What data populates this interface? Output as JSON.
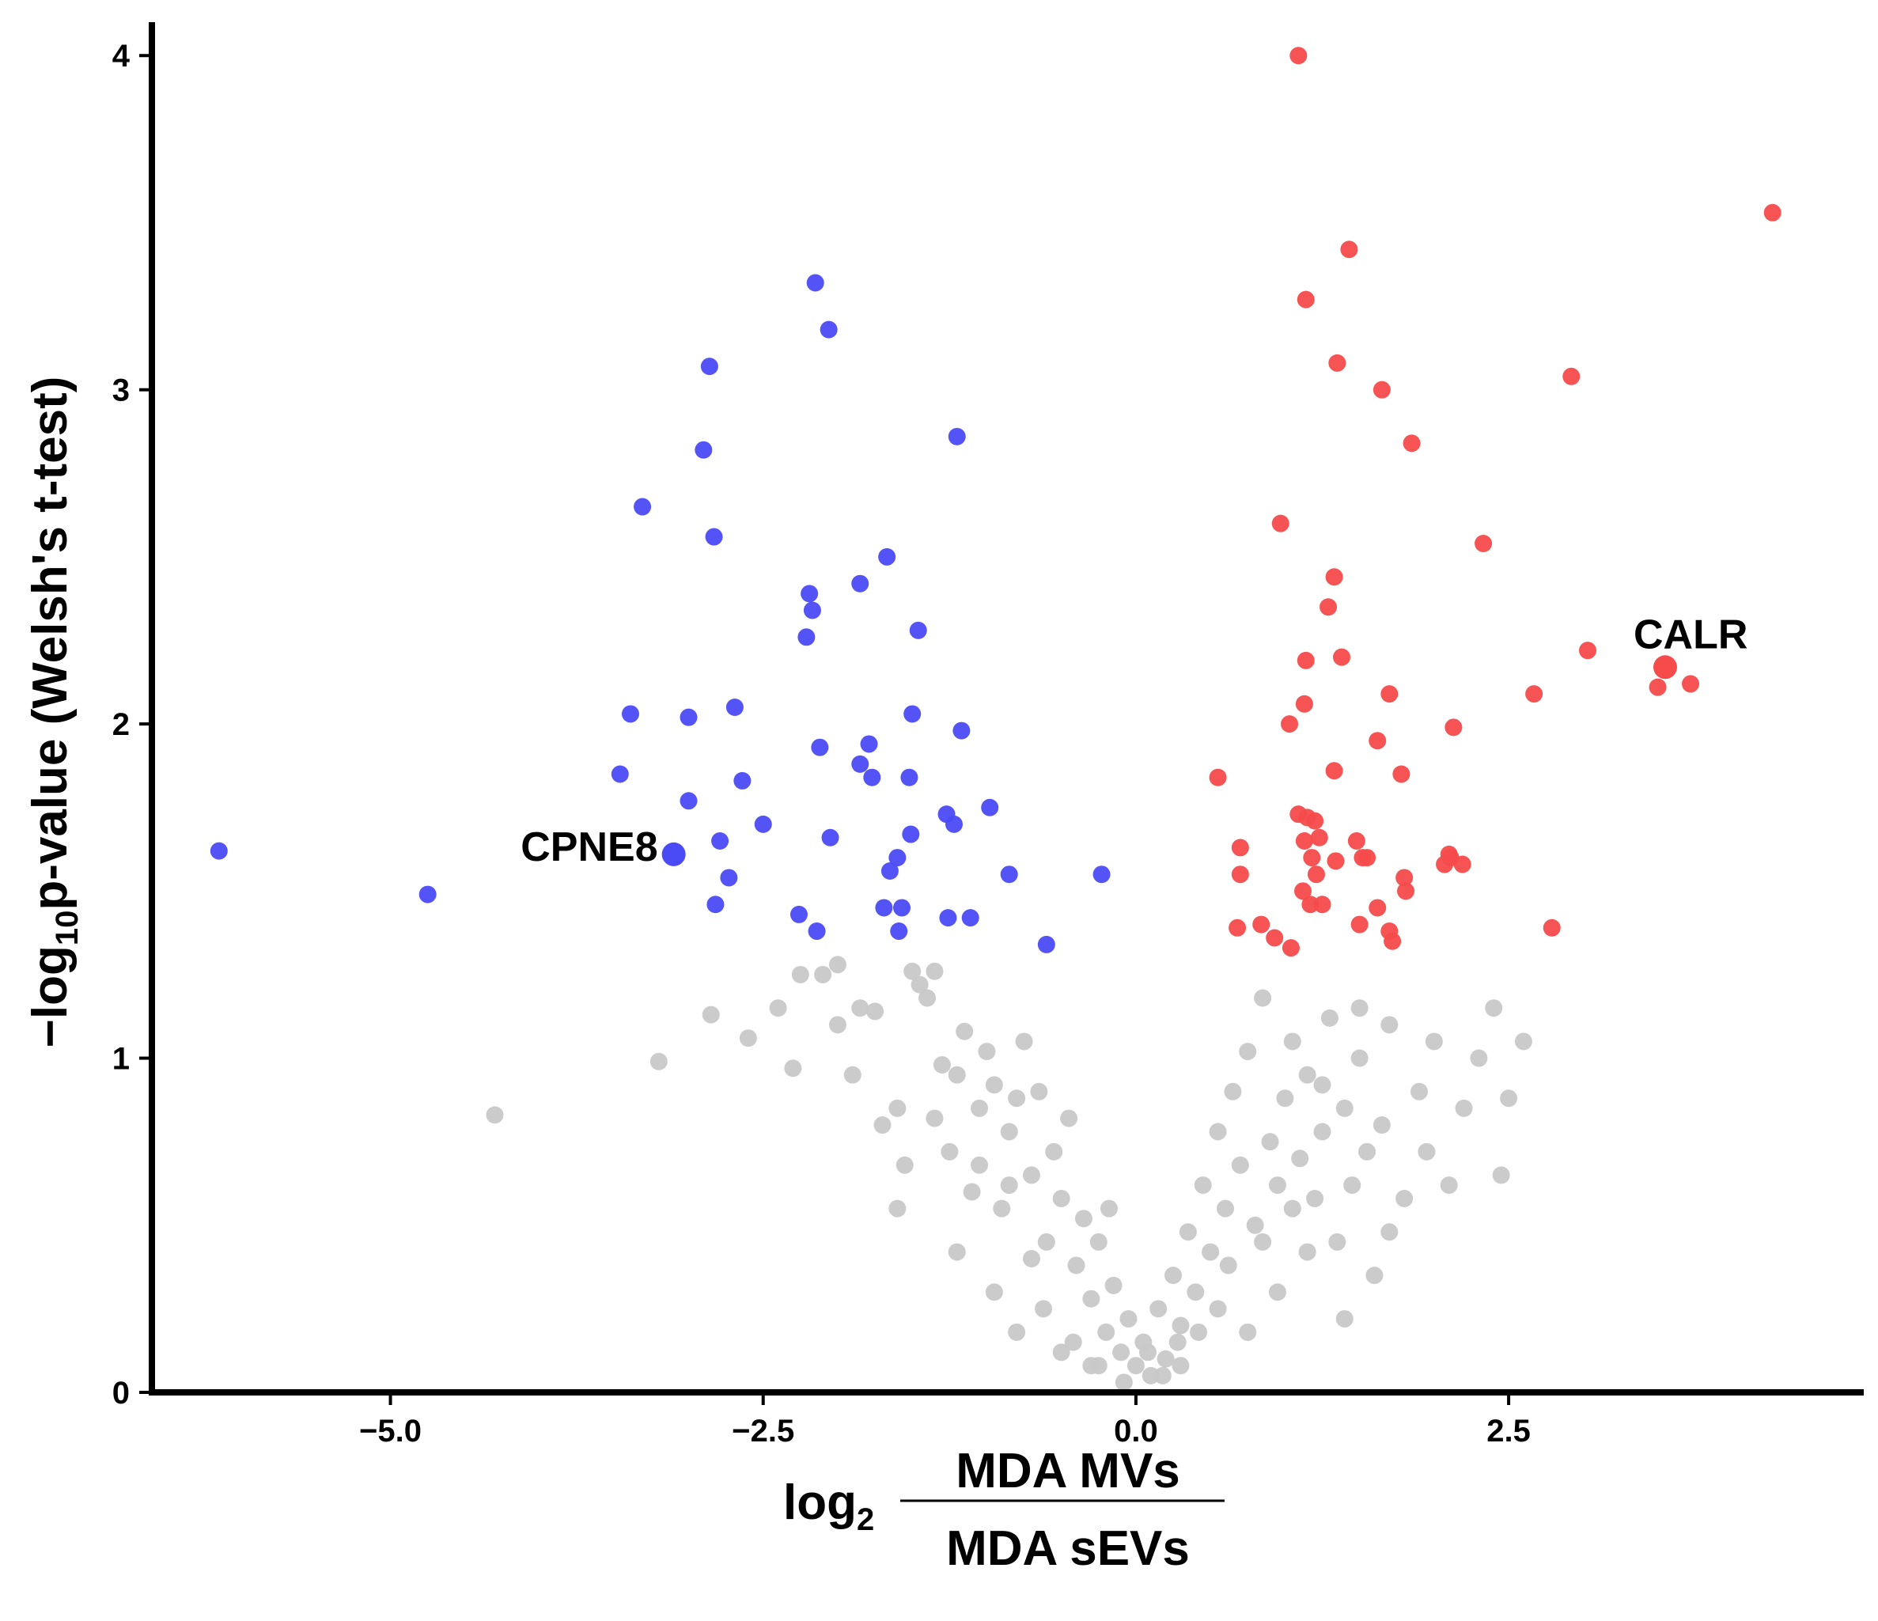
{
  "chart_data": {
    "type": "scatter",
    "title": "",
    "xlabel": {
      "prefix": "log",
      "base": "2",
      "numerator": "MDA MVs",
      "denominator": "MDA sEVs"
    },
    "ylabel": {
      "prefix": "−log",
      "base": "10",
      "suffix": "p-value (Welsh's t-test)"
    },
    "xlim": [
      -6.6,
      4.85
    ],
    "ylim": [
      0,
      4.1
    ],
    "xticks": [
      -5.0,
      -2.5,
      0.0,
      2.5
    ],
    "xtick_labels": [
      "−5.0",
      "−2.5",
      "0.0",
      "2.5"
    ],
    "yticks": [
      0,
      1,
      2,
      3,
      4
    ],
    "ytick_labels": [
      "0",
      "1",
      "2",
      "3",
      "4"
    ],
    "grid": false,
    "colors": {
      "down": "#4b4bf6",
      "up": "#f64b4b",
      "ns": "#c8c8c8"
    },
    "labels": [
      {
        "text": "CPNE8",
        "x": -3.1,
        "y": 1.61,
        "anchor": "end"
      },
      {
        "text": "CALR",
        "x": 3.55,
        "y": 2.17,
        "anchor": "start"
      }
    ],
    "series": [
      {
        "name": "down",
        "color": "#4b4bf6",
        "points": [
          [
            -6.15,
            1.62
          ],
          [
            -4.75,
            1.49
          ],
          [
            -3.31,
            2.65
          ],
          [
            -3.39,
            2.03
          ],
          [
            -3.46,
            1.85
          ],
          [
            -3.1,
            1.61
          ],
          [
            -3.0,
            2.02
          ],
          [
            -3.0,
            1.77
          ],
          [
            -2.9,
            2.82
          ],
          [
            -2.86,
            3.07
          ],
          [
            -2.83,
            2.56
          ],
          [
            -2.82,
            1.46
          ],
          [
            -2.79,
            1.65
          ],
          [
            -2.73,
            1.54
          ],
          [
            -2.69,
            2.05
          ],
          [
            -2.64,
            1.83
          ],
          [
            -2.5,
            1.7
          ],
          [
            -2.26,
            1.43
          ],
          [
            -2.21,
            2.26
          ],
          [
            -2.19,
            2.39
          ],
          [
            -2.17,
            2.34
          ],
          [
            -2.15,
            3.32
          ],
          [
            -2.14,
            1.38
          ],
          [
            -2.12,
            1.93
          ],
          [
            -2.06,
            3.18
          ],
          [
            -2.05,
            1.66
          ],
          [
            -1.85,
            2.42
          ],
          [
            -1.85,
            1.88
          ],
          [
            -1.79,
            1.94
          ],
          [
            -1.77,
            1.84
          ],
          [
            -1.69,
            1.45
          ],
          [
            -1.67,
            2.5
          ],
          [
            -1.65,
            1.56
          ],
          [
            -1.6,
            1.6
          ],
          [
            -1.59,
            1.38
          ],
          [
            -1.57,
            1.45
          ],
          [
            -1.52,
            1.84
          ],
          [
            -1.51,
            1.67
          ],
          [
            -1.5,
            2.03
          ],
          [
            -1.46,
            2.28
          ],
          [
            -1.27,
            1.73
          ],
          [
            -1.26,
            1.42
          ],
          [
            -1.22,
            1.7
          ],
          [
            -1.2,
            2.86
          ],
          [
            -1.17,
            1.98
          ],
          [
            -1.11,
            1.42
          ],
          [
            -0.98,
            1.75
          ],
          [
            -0.85,
            1.55
          ],
          [
            -0.6,
            1.34
          ],
          [
            -0.23,
            1.55
          ]
        ]
      },
      {
        "name": "up",
        "color": "#f64b4b",
        "points": [
          [
            0.55,
            1.84
          ],
          [
            0.68,
            1.39
          ],
          [
            0.7,
            1.63
          ],
          [
            0.7,
            1.55
          ],
          [
            0.84,
            1.4
          ],
          [
            0.93,
            1.36
          ],
          [
            0.97,
            2.6
          ],
          [
            1.03,
            2.0
          ],
          [
            1.09,
            4.0
          ],
          [
            1.13,
            2.06
          ],
          [
            1.04,
            1.33
          ],
          [
            1.09,
            1.73
          ],
          [
            1.12,
            1.5
          ],
          [
            1.13,
            1.65
          ],
          [
            1.14,
            2.19
          ],
          [
            1.14,
            3.27
          ],
          [
            1.15,
            1.72
          ],
          [
            1.17,
            1.46
          ],
          [
            1.18,
            1.6
          ],
          [
            1.2,
            1.71
          ],
          [
            1.21,
            1.55
          ],
          [
            1.23,
            1.66
          ],
          [
            1.25,
            1.46
          ],
          [
            1.29,
            2.35
          ],
          [
            1.33,
            2.44
          ],
          [
            1.33,
            1.86
          ],
          [
            1.34,
            1.59
          ],
          [
            1.35,
            3.08
          ],
          [
            1.38,
            2.2
          ],
          [
            1.43,
            3.42
          ],
          [
            1.48,
            1.65
          ],
          [
            1.5,
            1.4
          ],
          [
            1.52,
            1.6
          ],
          [
            1.55,
            1.6
          ],
          [
            1.62,
            1.95
          ],
          [
            1.62,
            1.45
          ],
          [
            1.65,
            3.0
          ],
          [
            1.7,
            1.38
          ],
          [
            1.7,
            2.09
          ],
          [
            1.72,
            1.35
          ],
          [
            1.78,
            1.85
          ],
          [
            1.8,
            1.54
          ],
          [
            1.81,
            1.5
          ],
          [
            1.85,
            2.84
          ],
          [
            2.07,
            1.58
          ],
          [
            2.1,
            1.61
          ],
          [
            2.11,
            1.6
          ],
          [
            2.13,
            1.99
          ],
          [
            2.19,
            1.58
          ],
          [
            2.33,
            2.54
          ],
          [
            2.67,
            2.09
          ],
          [
            2.79,
            1.39
          ],
          [
            2.92,
            3.04
          ],
          [
            3.03,
            2.22
          ],
          [
            3.5,
            2.11
          ],
          [
            3.72,
            2.12
          ],
          [
            4.27,
            3.53
          ],
          [
            3.55,
            2.17
          ]
        ]
      },
      {
        "name": "ns",
        "color": "#c8c8c8",
        "points": [
          [
            -4.3,
            0.83
          ],
          [
            -3.2,
            0.99
          ],
          [
            -2.85,
            1.13
          ],
          [
            -2.6,
            1.06
          ],
          [
            -2.3,
            0.97
          ],
          [
            -2.25,
            1.25
          ],
          [
            -2.1,
            1.25
          ],
          [
            -2.0,
            1.1
          ],
          [
            -2.0,
            1.28
          ],
          [
            -1.85,
            1.15
          ],
          [
            -1.75,
            1.14
          ],
          [
            -1.7,
            0.8
          ],
          [
            -1.6,
            0.85
          ],
          [
            -1.5,
            1.26
          ],
          [
            -1.45,
            1.22
          ],
          [
            -1.4,
            1.18
          ],
          [
            -1.35,
            1.26
          ],
          [
            -1.3,
            0.98
          ],
          [
            -1.25,
            0.72
          ],
          [
            -1.2,
            0.95
          ],
          [
            -1.15,
            1.08
          ],
          [
            -1.1,
            0.6
          ],
          [
            -1.05,
            0.85
          ],
          [
            -1.0,
            1.02
          ],
          [
            -0.95,
            0.92
          ],
          [
            -0.9,
            0.55
          ],
          [
            -0.85,
            0.78
          ],
          [
            -0.8,
            0.88
          ],
          [
            -0.75,
            1.05
          ],
          [
            -0.7,
            0.65
          ],
          [
            -0.65,
            0.9
          ],
          [
            -0.6,
            0.45
          ],
          [
            -0.55,
            0.72
          ],
          [
            -0.5,
            0.58
          ],
          [
            -0.45,
            0.82
          ],
          [
            -0.4,
            0.38
          ],
          [
            -0.35,
            0.52
          ],
          [
            -0.3,
            0.28
          ],
          [
            -0.25,
            0.45
          ],
          [
            -0.2,
            0.18
          ],
          [
            -0.15,
            0.32
          ],
          [
            -0.1,
            0.12
          ],
          [
            -0.05,
            0.22
          ],
          [
            0.0,
            0.08
          ],
          [
            0.05,
            0.15
          ],
          [
            0.1,
            0.05
          ],
          [
            0.15,
            0.25
          ],
          [
            0.2,
            0.1
          ],
          [
            0.25,
            0.35
          ],
          [
            0.3,
            0.2
          ],
          [
            0.35,
            0.48
          ],
          [
            0.4,
            0.3
          ],
          [
            0.45,
            0.62
          ],
          [
            0.5,
            0.42
          ],
          [
            0.55,
            0.78
          ],
          [
            0.6,
            0.55
          ],
          [
            0.65,
            0.9
          ],
          [
            0.7,
            0.68
          ],
          [
            0.75,
            1.02
          ],
          [
            0.8,
            0.5
          ],
          [
            0.85,
            1.18
          ],
          [
            0.9,
            0.75
          ],
          [
            0.95,
            0.62
          ],
          [
            1.0,
            0.88
          ],
          [
            1.05,
            1.05
          ],
          [
            1.1,
            0.7
          ],
          [
            1.15,
            0.95
          ],
          [
            1.2,
            0.58
          ],
          [
            1.25,
            0.78
          ],
          [
            1.3,
            1.12
          ],
          [
            1.35,
            0.45
          ],
          [
            1.4,
            0.85
          ],
          [
            1.45,
            0.62
          ],
          [
            1.5,
            1.0
          ],
          [
            1.55,
            0.72
          ],
          [
            1.6,
            0.35
          ],
          [
            1.65,
            0.8
          ],
          [
            1.7,
            1.1
          ],
          [
            1.8,
            0.58
          ],
          [
            1.9,
            0.9
          ],
          [
            2.0,
            1.05
          ],
          [
            2.1,
            0.62
          ],
          [
            2.2,
            0.85
          ],
          [
            2.3,
            1.0
          ],
          [
            2.45,
            0.65
          ],
          [
            2.5,
            0.88
          ],
          [
            2.6,
            1.05
          ],
          [
            -1.6,
            0.55
          ],
          [
            -1.2,
            0.42
          ],
          [
            -0.95,
            0.3
          ],
          [
            -0.8,
            0.18
          ],
          [
            -0.7,
            0.4
          ],
          [
            -0.5,
            0.12
          ],
          [
            -0.3,
            0.08
          ],
          [
            0.3,
            0.08
          ],
          [
            0.55,
            0.25
          ],
          [
            0.75,
            0.18
          ],
          [
            0.95,
            0.3
          ],
          [
            1.15,
            0.42
          ],
          [
            1.4,
            0.22
          ],
          [
            1.7,
            0.48
          ],
          [
            -2.4,
            1.15
          ],
          [
            -1.9,
            0.95
          ],
          [
            -1.55,
            0.68
          ],
          [
            -1.35,
            0.82
          ],
          [
            -1.05,
            0.68
          ],
          [
            -0.85,
            0.62
          ],
          [
            -0.62,
            0.25
          ],
          [
            -0.42,
            0.15
          ],
          [
            0.42,
            0.18
          ],
          [
            0.62,
            0.38
          ],
          [
            0.85,
            0.45
          ],
          [
            1.05,
            0.55
          ],
          [
            1.25,
            0.92
          ],
          [
            1.5,
            1.15
          ],
          [
            1.95,
            0.72
          ],
          [
            2.4,
            1.15
          ],
          [
            -0.18,
            0.55
          ],
          [
            0.18,
            0.05
          ],
          [
            -0.08,
            0.03
          ],
          [
            0.08,
            0.12
          ],
          [
            -0.25,
            0.08
          ],
          [
            0.28,
            0.15
          ]
        ]
      }
    ]
  }
}
